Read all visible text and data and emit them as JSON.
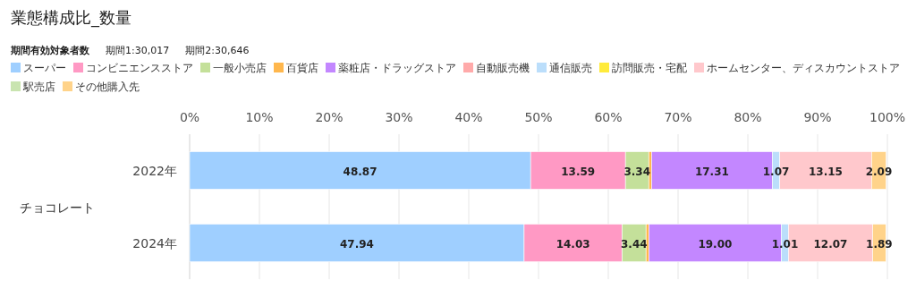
{
  "chart_data": {
    "type": "bar",
    "orientation": "horizontal",
    "stacked": true,
    "title": "業態構成比_数量",
    "ylabel": "チョコレート",
    "annotations": [
      "期間有効対象者数",
      "期間1:30,017",
      "期間2:30,646"
    ],
    "categories": [
      "2022年",
      "2024年"
    ],
    "series": [
      {
        "name": "スーパー",
        "color": "#9fcfff",
        "values": [
          48.87,
          47.94
        ],
        "value_labels": [
          "48.87",
          "47.94"
        ]
      },
      {
        "name": "コンビニエンスストア",
        "color": "#ff99c4",
        "values": [
          13.59,
          14.03
        ],
        "value_labels": [
          "13.59",
          "14.03"
        ]
      },
      {
        "name": "一般小売店",
        "color": "#c4e09a",
        "values": [
          3.34,
          3.44
        ],
        "value_labels": [
          "3.34",
          "3.44"
        ]
      },
      {
        "name": "百貨店",
        "color": "#ffb74d",
        "values": [
          0.4,
          0.4
        ],
        "value_labels": [
          null,
          null
        ]
      },
      {
        "name": "薬粧店・ドラッグストア",
        "color": "#c387ff",
        "values": [
          17.31,
          19.0
        ],
        "value_labels": [
          "17.31",
          "19.00"
        ]
      },
      {
        "name": "自動販売機",
        "color": "#ffaaaa",
        "values": [
          null,
          null
        ],
        "value_labels": [
          null,
          null
        ]
      },
      {
        "name": "通信販売",
        "color": "#bbdefb",
        "values": [
          1.07,
          1.01
        ],
        "value_labels": [
          "1.07",
          "1.01"
        ]
      },
      {
        "name": "訪問販売・宅配",
        "color": "#ffeb3b",
        "values": [
          null,
          null
        ],
        "value_labels": [
          null,
          null
        ]
      },
      {
        "name": "ホームセンター、ディスカウントストア",
        "color": "#ffc8cc",
        "values": [
          13.15,
          12.07
        ],
        "value_labels": [
          "13.15",
          "12.07"
        ]
      },
      {
        "name": "駅売店",
        "color": "#c9e4b0",
        "values": [
          null,
          null
        ],
        "value_labels": [
          null,
          null
        ]
      },
      {
        "name": "その他購入先",
        "color": "#ffd38a",
        "values": [
          2.09,
          1.89
        ],
        "value_labels": [
          "2.09",
          "1.89"
        ]
      }
    ],
    "xlim": [
      0,
      100
    ],
    "xticks": [
      {
        "value": 0,
        "label": "0%"
      },
      {
        "value": 10,
        "label": "10%"
      },
      {
        "value": 20,
        "label": "20%"
      },
      {
        "value": 30,
        "label": "30%"
      },
      {
        "value": 40,
        "label": "40%"
      },
      {
        "value": 50,
        "label": "50%"
      },
      {
        "value": 60,
        "label": "60%"
      },
      {
        "value": 70,
        "label": "70%"
      },
      {
        "value": 80,
        "label": "80%"
      },
      {
        "value": 90,
        "label": "90%"
      },
      {
        "value": 100,
        "label": "100%"
      }
    ],
    "grid": "x",
    "legend": "top"
  }
}
